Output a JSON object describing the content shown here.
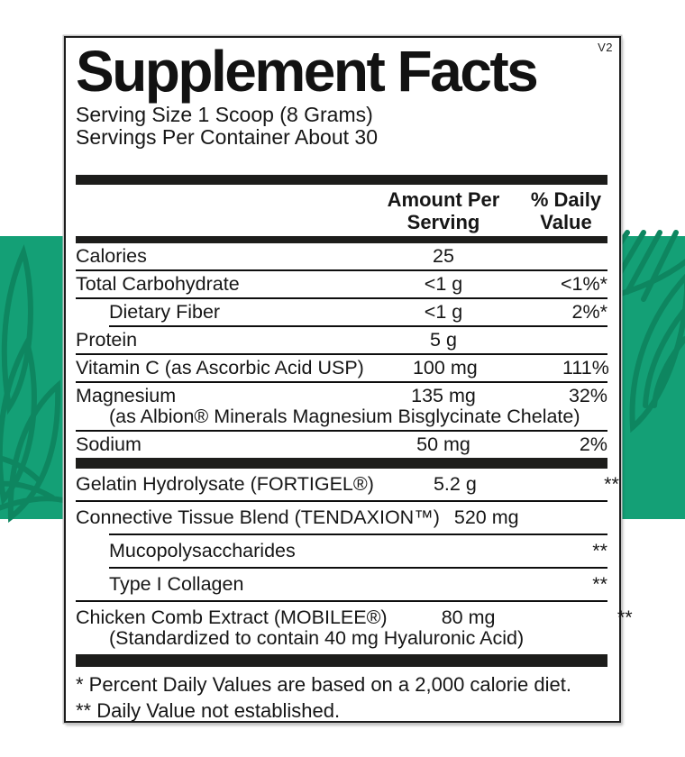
{
  "title": "Supplement Facts",
  "version_tag": "V2",
  "serving": {
    "size": "Serving Size 1 Scoop (8 Grams)",
    "per_container": "Servings Per Container About 30"
  },
  "columns": {
    "amount": [
      "Amount Per",
      "Serving"
    ],
    "dv": [
      "% Daily",
      "Value"
    ]
  },
  "body": [
    {
      "type": "row",
      "label": "Calories",
      "amount": "25",
      "dv": ""
    },
    {
      "type": "sep"
    },
    {
      "type": "row",
      "label": "Total Carbohydrate",
      "amount": "<1 g",
      "dv": "<1%*"
    },
    {
      "type": "sep"
    },
    {
      "type": "row",
      "label": "Dietary Fiber",
      "amount": "<1 g",
      "dv": "2%*",
      "indent": true
    },
    {
      "type": "sep",
      "indent": true
    },
    {
      "type": "row",
      "label": "Protein",
      "amount": "5 g",
      "dv": ""
    },
    {
      "type": "sep"
    },
    {
      "type": "row",
      "label": "Vitamin C (as Ascorbic Acid USP)",
      "amount": "100 mg",
      "dv": "111%"
    },
    {
      "type": "sep"
    },
    {
      "type": "row",
      "label": "Magnesium",
      "sublabel": "(as Albion® Minerals Magnesium Bisglycinate Chelate)",
      "amount": "135 mg",
      "dv": "32%"
    },
    {
      "type": "sep"
    },
    {
      "type": "row",
      "label": "Sodium",
      "amount": "50 mg",
      "dv": "2%"
    },
    {
      "type": "bar",
      "size": "mid"
    },
    {
      "type": "row",
      "label": "Gelatin Hydrolysate (FORTIGEL®)",
      "amount": "5.2 g",
      "dv": "**",
      "s2": true
    },
    {
      "type": "sep"
    },
    {
      "type": "row",
      "label": "Connective Tissue Blend (TENDAXION™)",
      "amount": "520 mg",
      "dv": "",
      "s2": true,
      "inline_amount": true
    },
    {
      "type": "sep",
      "indent": true
    },
    {
      "type": "row",
      "label": "Mucopolysaccharides",
      "amount": "",
      "dv": "**",
      "indent": true,
      "s2": true
    },
    {
      "type": "sep",
      "indent": true
    },
    {
      "type": "row",
      "label": "Type I Collagen",
      "amount": "",
      "dv": "**",
      "indent": true,
      "s2": true
    },
    {
      "type": "sep"
    },
    {
      "type": "row",
      "label": "Chicken Comb Extract (MOBILEE®)",
      "sublabel": "(Standardized to contain 40 mg Hyaluronic Acid)",
      "amount": "80 mg",
      "dv": "**",
      "s2": true
    },
    {
      "type": "bar",
      "size": "bottom"
    }
  ],
  "footnotes": [
    "* Percent Daily Values are based on a 2,000 calorie diet.",
    "** Daily Value not established."
  ],
  "colors": {
    "band_green": "#14A076",
    "leaf_stroke": "#0E8660",
    "bar_black": "#1D1D1B"
  }
}
